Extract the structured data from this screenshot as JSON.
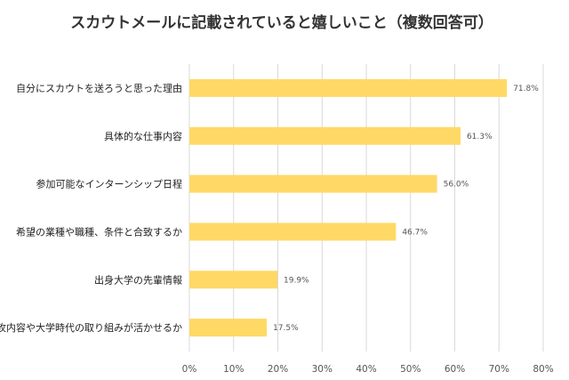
{
  "chart_data": {
    "type": "bar",
    "orientation": "horizontal",
    "title": "スカウトメールに記載されていると嬉しいこと（複数回答可）",
    "categories": [
      "自分にスカウトを送ろうと思った理由",
      "具体的な仕事内容",
      "参加可能なインターンシップ日程",
      "希望の業種や職種、条件と合致するか",
      "出身大学の先輩情報",
      "専攻内容や大学時代の取り組みが活かせるか"
    ],
    "values": [
      71.8,
      61.3,
      56.0,
      46.7,
      19.9,
      17.5
    ],
    "value_labels": [
      "71.8%",
      "61.3%",
      "56.0%",
      "46.7%",
      "19.9%",
      "17.5%"
    ],
    "xlim": [
      0,
      80
    ],
    "x_ticks": [
      0,
      10,
      20,
      30,
      40,
      50,
      60,
      70,
      80
    ],
    "x_tick_labels": [
      "0%",
      "10%",
      "20%",
      "30%",
      "40%",
      "50%",
      "60%",
      "70%",
      "80%"
    ],
    "grid": true,
    "legend": "none",
    "colors": {
      "bar": "#FFD966",
      "grid": "#d9d9d9"
    }
  }
}
